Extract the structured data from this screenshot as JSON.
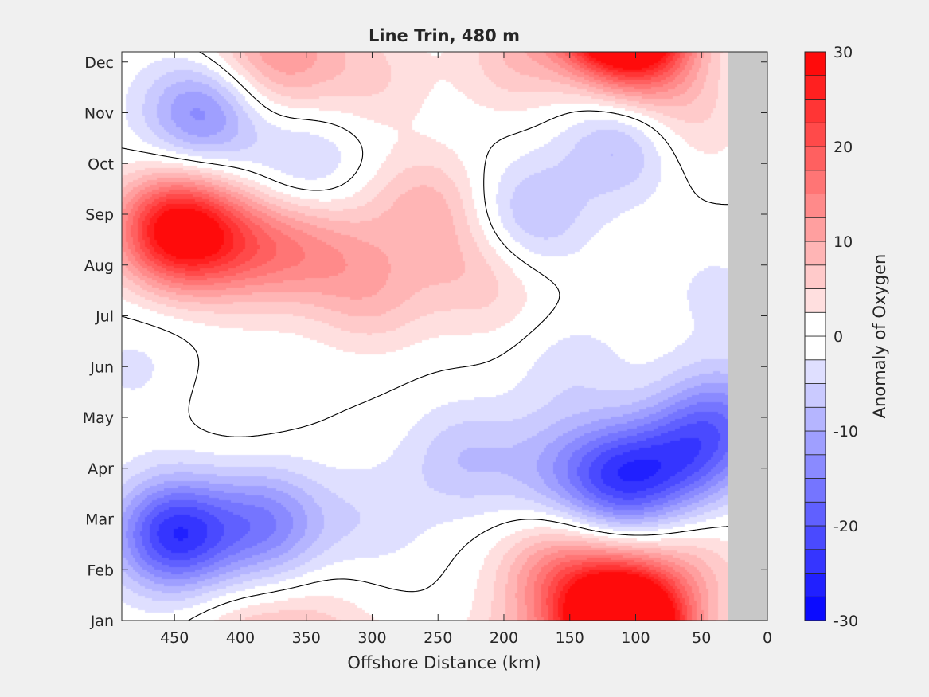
{
  "chart_data": {
    "type": "heatmap",
    "title": "Line Trin, 480 m",
    "xlabel": "Offshore Distance (km)",
    "ylabel": "",
    "xlim": [
      490,
      0
    ],
    "x_ticks": [
      450,
      400,
      350,
      300,
      250,
      200,
      150,
      100,
      50,
      0
    ],
    "y_ticks": [
      "Jan",
      "Feb",
      "Mar",
      "Apr",
      "May",
      "Jun",
      "Jul",
      "Aug",
      "Sep",
      "Oct",
      "Nov",
      "Dec"
    ],
    "colorbar": {
      "label": "Anomaly of Oxygen",
      "min": -30,
      "max": 30,
      "levels": 24,
      "ticks": [
        -30,
        -20,
        -10,
        0,
        10,
        20,
        30
      ],
      "min_color": "#0000ff",
      "mid_color": "#ffffff",
      "max_color": "#ff0000"
    },
    "no_data": {
      "x_range": [
        30,
        0
      ],
      "color": "#c8c8c8"
    },
    "zero_contour": true,
    "features": [
      {
        "x": 450,
        "month": 7.7,
        "anomaly": 29
      },
      {
        "x": 410,
        "month": 7.4,
        "anomaly": 10
      },
      {
        "x": 370,
        "month": 7.3,
        "anomaly": 9
      },
      {
        "x": 330,
        "month": 7.3,
        "anomaly": 6
      },
      {
        "x": 300,
        "month": 6.4,
        "anomaly": 7
      },
      {
        "x": 260,
        "month": 8.2,
        "anomaly": 8
      },
      {
        "x": 230,
        "month": 7.0,
        "anomaly": 5
      },
      {
        "x": 200,
        "month": 6.4,
        "anomaly": 3
      },
      {
        "x": 370,
        "month": 11.0,
        "anomaly": 10
      },
      {
        "x": 410,
        "month": 11.6,
        "anomaly": 4
      },
      {
        "x": 300,
        "month": 10.7,
        "anomaly": 5
      },
      {
        "x": 190,
        "month": 11.1,
        "anomaly": 7
      },
      {
        "x": 110,
        "month": 11.7,
        "anomaly": 26
      },
      {
        "x": 90,
        "month": 11.0,
        "anomaly": 9
      },
      {
        "x": 60,
        "month": 9.8,
        "anomaly": 5
      },
      {
        "x": 110,
        "month": 0.2,
        "anomaly": 26
      },
      {
        "x": 160,
        "month": 0.9,
        "anomaly": 13
      },
      {
        "x": 55,
        "month": 1.0,
        "anomaly": 6
      },
      {
        "x": 340,
        "month": 0.1,
        "anomaly": 3
      },
      {
        "x": 450,
        "month": 1.7,
        "anomaly": -24
      },
      {
        "x": 380,
        "month": 1.9,
        "anomaly": -14
      },
      {
        "x": 430,
        "month": 10.0,
        "anomaly": -14
      },
      {
        "x": 350,
        "month": 9.0,
        "anomaly": -6
      },
      {
        "x": 180,
        "month": 8.0,
        "anomaly": -8
      },
      {
        "x": 110,
        "month": 9.4,
        "anomaly": -9
      },
      {
        "x": 110,
        "month": 2.8,
        "anomaly": -20
      },
      {
        "x": 60,
        "month": 3.2,
        "anomaly": -13
      },
      {
        "x": 35,
        "month": 4.0,
        "anomaly": -12
      },
      {
        "x": 230,
        "month": 3.2,
        "anomaly": -7
      },
      {
        "x": 160,
        "month": 3.0,
        "anomaly": -7
      },
      {
        "x": 480,
        "month": 5.0,
        "anomaly": -3
      },
      {
        "x": 300,
        "month": 2.0,
        "anomaly": -4
      },
      {
        "x": 400,
        "month": 4.3,
        "anomaly": 2
      },
      {
        "x": 150,
        "month": 5.0,
        "anomaly": -4
      },
      {
        "x": 40,
        "month": 6.5,
        "anomaly": -3
      }
    ]
  }
}
